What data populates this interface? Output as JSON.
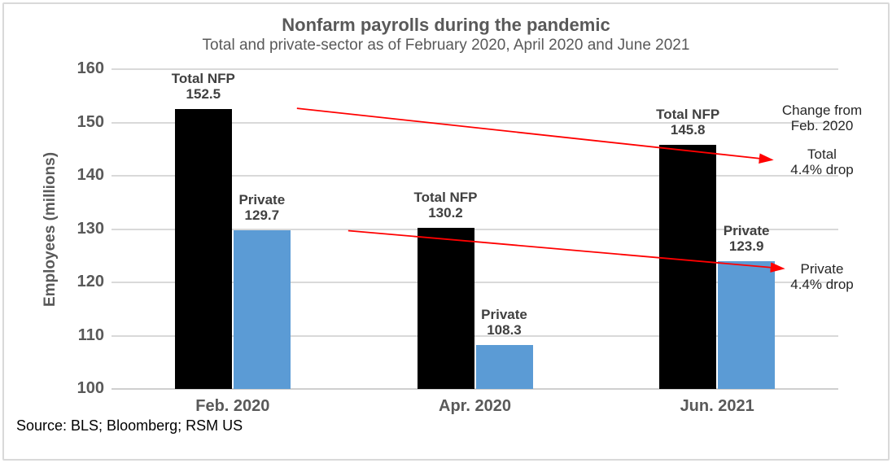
{
  "title": "Nonfarm payrolls during the pandemic",
  "subtitle": "Total and private-sector as of February 2020, April 2020 and June 2021",
  "source": "Source: BLS; Bloomberg; RSM US",
  "chart_data": {
    "type": "bar",
    "title": "Nonfarm payrolls during the pandemic",
    "subtitle": "Total and private-sector as of February 2020, April 2020 and June 2021",
    "ylabel": "Employees (millions)",
    "xlabel": "",
    "ylim": [
      100,
      160
    ],
    "yticks": [
      100,
      110,
      120,
      130,
      140,
      150,
      160
    ],
    "grid": true,
    "legend_position": "none (bars labeled directly above)",
    "categories": [
      "Feb. 2020",
      "Apr. 2020",
      "Jun. 2021"
    ],
    "series": [
      {
        "name": "Total NFP",
        "color": "#000000",
        "values": [
          152.5,
          130.2,
          145.8
        ]
      },
      {
        "name": "Private",
        "color": "#5B9BD5",
        "values": [
          129.7,
          108.3,
          123.9
        ]
      }
    ],
    "annotations": {
      "header": [
        "Change from",
        "Feb. 2020"
      ],
      "total_arrow": {
        "lines": [
          "Total",
          "4.4% drop"
        ],
        "from_value": 152.5,
        "to_value": 143.0,
        "color": "#FF0000"
      },
      "private_arrow": {
        "lines": [
          "Private",
          "4.4% drop"
        ],
        "from_value": 129.7,
        "to_value": 122.6,
        "color": "#FF0000"
      }
    }
  },
  "colors": {
    "title_text": "#595959",
    "bar_label_text": "#404040",
    "gridline": "#D9D9D9",
    "bar_total": "#000000",
    "bar_private": "#5B9BD5",
    "arrow": "#FF0000"
  }
}
